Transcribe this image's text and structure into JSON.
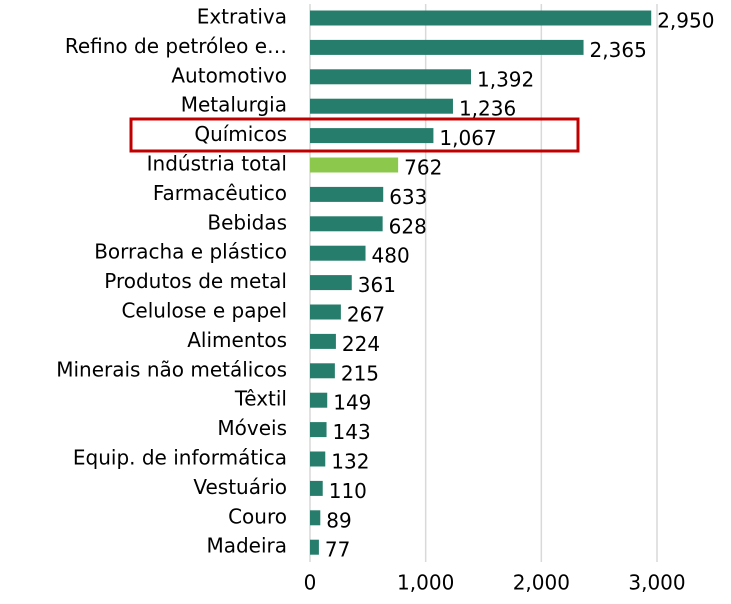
{
  "chart_data": {
    "type": "bar",
    "orientation": "horizontal",
    "categories": [
      "Extrativa",
      "Refino de petróleo e…",
      "Automotivo",
      "Metalurgia",
      "Químicos",
      "Indústria total",
      "Farmacêutico",
      "Bebidas",
      "Borracha e plástico",
      "Produtos de metal",
      "Celulose e papel",
      "Alimentos",
      "Minerais não metálicos",
      "Têxtil",
      "Móveis",
      "Equip. de informática",
      "Vestuário",
      "Couro",
      "Madeira"
    ],
    "values": [
      2950,
      2365,
      1392,
      1236,
      1067,
      762,
      633,
      628,
      480,
      361,
      267,
      224,
      215,
      149,
      143,
      132,
      110,
      89,
      77
    ],
    "value_labels": [
      "2,950",
      "2,365",
      "1,392",
      "1,236",
      "1,067",
      "762",
      "633",
      "628",
      "480",
      "361",
      "267",
      "224",
      "215",
      "149",
      "143",
      "132",
      "110",
      "89",
      "77"
    ],
    "colors": [
      "#267d6c",
      "#267d6c",
      "#267d6c",
      "#267d6c",
      "#267d6c",
      "#8cc84b",
      "#267d6c",
      "#267d6c",
      "#267d6c",
      "#267d6c",
      "#267d6c",
      "#267d6c",
      "#267d6c",
      "#267d6c",
      "#267d6c",
      "#267d6c",
      "#267d6c",
      "#267d6c",
      "#267d6c"
    ],
    "xlim": [
      0,
      3000
    ],
    "xticks": [
      0,
      {
        "value": 1000,
        "label": "1,000"
      },
      {
        "value": 2000,
        "label": "2,000"
      },
      {
        "value": 3000,
        "label": "3,000"
      }
    ],
    "grid": true
  }
}
